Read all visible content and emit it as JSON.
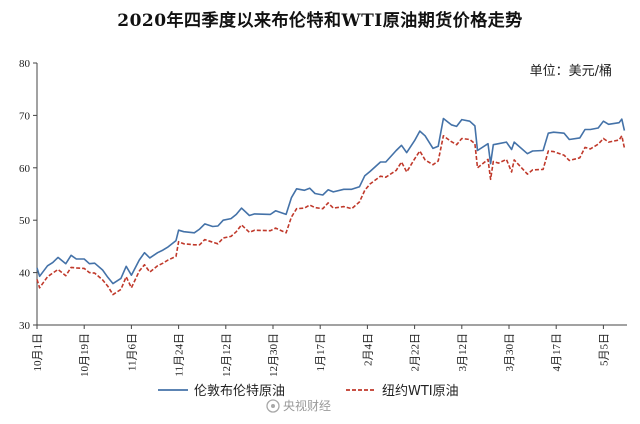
{
  "chart_data": {
    "type": "line",
    "title": "2020年四季度以来布伦特和WTI原油期货价格走势",
    "unit_label": "单位：美元/桶",
    "ylim": [
      30,
      80
    ],
    "yticks": [
      30,
      40,
      50,
      60,
      70,
      80
    ],
    "xlim": [
      "2020-10-01",
      "2021-05-14"
    ],
    "xticks": [
      {
        "label": "10月1日",
        "date": "2020-10-01"
      },
      {
        "label": "10月19日",
        "date": "2020-10-19"
      },
      {
        "label": "11月6日",
        "date": "2020-11-06"
      },
      {
        "label": "11月24日",
        "date": "2020-11-24"
      },
      {
        "label": "12月12日",
        "date": "2020-12-12"
      },
      {
        "label": "12月30日",
        "date": "2020-12-30"
      },
      {
        "label": "1月17日",
        "date": "2021-01-17"
      },
      {
        "label": "2月4日",
        "date": "2021-02-04"
      },
      {
        "label": "2月22日",
        "date": "2021-02-22"
      },
      {
        "label": "3月12日",
        "date": "2021-03-12"
      },
      {
        "label": "3月30日",
        "date": "2021-03-30"
      },
      {
        "label": "4月17日",
        "date": "2021-04-17"
      },
      {
        "label": "5月5日",
        "date": "2021-05-05"
      }
    ],
    "legend_placement": "bottom",
    "grid": false,
    "series": [
      {
        "name": "伦敦布伦特原油",
        "color": "#4472a8",
        "style": "solid",
        "points": [
          [
            "2020-10-01",
            40.9
          ],
          [
            "2020-10-02",
            39.3
          ],
          [
            "2020-10-05",
            41.3
          ],
          [
            "2020-10-07",
            41.9
          ],
          [
            "2020-10-09",
            42.9
          ],
          [
            "2020-10-12",
            41.7
          ],
          [
            "2020-10-14",
            43.3
          ],
          [
            "2020-10-16",
            42.6
          ],
          [
            "2020-10-19",
            42.6
          ],
          [
            "2020-10-21",
            41.7
          ],
          [
            "2020-10-23",
            41.8
          ],
          [
            "2020-10-26",
            40.5
          ],
          [
            "2020-10-28",
            39.1
          ],
          [
            "2020-10-30",
            37.9
          ],
          [
            "2020-11-02",
            38.9
          ],
          [
            "2020-11-04",
            41.2
          ],
          [
            "2020-11-06",
            39.5
          ],
          [
            "2020-11-09",
            42.4
          ],
          [
            "2020-11-11",
            43.8
          ],
          [
            "2020-11-13",
            42.8
          ],
          [
            "2020-11-16",
            43.8
          ],
          [
            "2020-11-18",
            44.3
          ],
          [
            "2020-11-20",
            44.9
          ],
          [
            "2020-11-23",
            46.1
          ],
          [
            "2020-11-24",
            48.1
          ],
          [
            "2020-11-26",
            47.8
          ],
          [
            "2020-11-30",
            47.6
          ],
          [
            "2020-12-02",
            48.3
          ],
          [
            "2020-12-04",
            49.3
          ],
          [
            "2020-12-07",
            48.8
          ],
          [
            "2020-12-09",
            48.9
          ],
          [
            "2020-12-11",
            50.0
          ],
          [
            "2020-12-14",
            50.3
          ],
          [
            "2020-12-16",
            51.1
          ],
          [
            "2020-12-18",
            52.3
          ],
          [
            "2020-12-21",
            50.9
          ],
          [
            "2020-12-23",
            51.2
          ],
          [
            "2020-12-29",
            51.1
          ],
          [
            "2020-12-31",
            51.8
          ],
          [
            "2021-01-04",
            51.1
          ],
          [
            "2021-01-06",
            54.3
          ],
          [
            "2021-01-08",
            55.99
          ],
          [
            "2021-01-11",
            55.7
          ],
          [
            "2021-01-13",
            56.1
          ],
          [
            "2021-01-15",
            55.1
          ],
          [
            "2021-01-18",
            54.8
          ],
          [
            "2021-01-20",
            55.8
          ],
          [
            "2021-01-22",
            55.4
          ],
          [
            "2021-01-26",
            55.9
          ],
          [
            "2021-01-29",
            55.9
          ],
          [
            "2021-02-01",
            56.4
          ],
          [
            "2021-02-03",
            58.5
          ],
          [
            "2021-02-05",
            59.3
          ],
          [
            "2021-02-09",
            61.1
          ],
          [
            "2021-02-11",
            61.1
          ],
          [
            "2021-02-15",
            63.3
          ],
          [
            "2021-02-17",
            64.3
          ],
          [
            "2021-02-19",
            62.9
          ],
          [
            "2021-02-22",
            65.2
          ],
          [
            "2021-02-24",
            67.0
          ],
          [
            "2021-02-26",
            66.1
          ],
          [
            "2021-03-01",
            63.7
          ],
          [
            "2021-03-03",
            64.1
          ],
          [
            "2021-03-05",
            69.4
          ],
          [
            "2021-03-08",
            68.2
          ],
          [
            "2021-03-10",
            67.9
          ],
          [
            "2021-03-12",
            69.2
          ],
          [
            "2021-03-15",
            68.9
          ],
          [
            "2021-03-17",
            68.0
          ],
          [
            "2021-03-18",
            63.3
          ],
          [
            "2021-03-22",
            64.6
          ],
          [
            "2021-03-23",
            60.8
          ],
          [
            "2021-03-24",
            64.4
          ],
          [
            "2021-03-26",
            64.6
          ],
          [
            "2021-03-29",
            64.9
          ],
          [
            "2021-03-31",
            63.5
          ],
          [
            "2021-04-01",
            64.9
          ],
          [
            "2021-04-06",
            62.7
          ],
          [
            "2021-04-08",
            63.2
          ],
          [
            "2021-04-12",
            63.3
          ],
          [
            "2021-04-14",
            66.6
          ],
          [
            "2021-04-16",
            66.8
          ],
          [
            "2021-04-20",
            66.6
          ],
          [
            "2021-04-22",
            65.4
          ],
          [
            "2021-04-26",
            65.7
          ],
          [
            "2021-04-28",
            67.3
          ],
          [
            "2021-04-30",
            67.3
          ],
          [
            "2021-05-03",
            67.6
          ],
          [
            "2021-05-05",
            68.9
          ],
          [
            "2021-05-07",
            68.3
          ],
          [
            "2021-05-11",
            68.6
          ],
          [
            "2021-05-12",
            69.3
          ],
          [
            "2021-05-13",
            67.1
          ]
        ]
      },
      {
        "name": "纽约WTI原油",
        "color": "#c0392b",
        "style": "dashed",
        "points": [
          [
            "2020-10-01",
            38.7
          ],
          [
            "2020-10-02",
            37.1
          ],
          [
            "2020-10-05",
            39.2
          ],
          [
            "2020-10-07",
            39.9
          ],
          [
            "2020-10-09",
            40.6
          ],
          [
            "2020-10-12",
            39.4
          ],
          [
            "2020-10-14",
            41.0
          ],
          [
            "2020-10-16",
            40.9
          ],
          [
            "2020-10-19",
            40.8
          ],
          [
            "2020-10-21",
            40.0
          ],
          [
            "2020-10-23",
            39.9
          ],
          [
            "2020-10-26",
            38.6
          ],
          [
            "2020-10-28",
            37.4
          ],
          [
            "2020-10-30",
            35.8
          ],
          [
            "2020-11-02",
            36.8
          ],
          [
            "2020-11-04",
            39.2
          ],
          [
            "2020-11-06",
            37.1
          ],
          [
            "2020-11-09",
            40.3
          ],
          [
            "2020-11-11",
            41.5
          ],
          [
            "2020-11-13",
            40.1
          ],
          [
            "2020-11-16",
            41.3
          ],
          [
            "2020-11-18",
            41.8
          ],
          [
            "2020-11-20",
            42.4
          ],
          [
            "2020-11-23",
            43.1
          ],
          [
            "2020-11-24",
            45.9
          ],
          [
            "2020-11-26",
            45.5
          ],
          [
            "2020-11-30",
            45.3
          ],
          [
            "2020-12-02",
            45.3
          ],
          [
            "2020-12-04",
            46.3
          ],
          [
            "2020-12-07",
            45.8
          ],
          [
            "2020-12-09",
            45.5
          ],
          [
            "2020-12-11",
            46.6
          ],
          [
            "2020-12-14",
            46.9
          ],
          [
            "2020-12-16",
            47.8
          ],
          [
            "2020-12-18",
            49.1
          ],
          [
            "2020-12-21",
            47.7
          ],
          [
            "2020-12-23",
            48.1
          ],
          [
            "2020-12-29",
            48.0
          ],
          [
            "2020-12-31",
            48.5
          ],
          [
            "2021-01-04",
            47.6
          ],
          [
            "2021-01-06",
            50.6
          ],
          [
            "2021-01-08",
            52.2
          ],
          [
            "2021-01-11",
            52.3
          ],
          [
            "2021-01-13",
            52.9
          ],
          [
            "2021-01-15",
            52.4
          ],
          [
            "2021-01-18",
            52.2
          ],
          [
            "2021-01-20",
            53.3
          ],
          [
            "2021-01-22",
            52.3
          ],
          [
            "2021-01-26",
            52.6
          ],
          [
            "2021-01-29",
            52.2
          ],
          [
            "2021-02-01",
            53.5
          ],
          [
            "2021-02-03",
            55.7
          ],
          [
            "2021-02-05",
            56.9
          ],
          [
            "2021-02-09",
            58.4
          ],
          [
            "2021-02-11",
            58.2
          ],
          [
            "2021-02-15",
            59.5
          ],
          [
            "2021-02-17",
            61.1
          ],
          [
            "2021-02-19",
            59.2
          ],
          [
            "2021-02-22",
            61.7
          ],
          [
            "2021-02-24",
            63.2
          ],
          [
            "2021-02-26",
            61.5
          ],
          [
            "2021-03-01",
            60.6
          ],
          [
            "2021-03-03",
            61.3
          ],
          [
            "2021-03-05",
            66.1
          ],
          [
            "2021-03-08",
            65.0
          ],
          [
            "2021-03-10",
            64.4
          ],
          [
            "2021-03-12",
            65.6
          ],
          [
            "2021-03-15",
            65.4
          ],
          [
            "2021-03-17",
            64.6
          ],
          [
            "2021-03-18",
            60.0
          ],
          [
            "2021-03-22",
            61.6
          ],
          [
            "2021-03-23",
            57.8
          ],
          [
            "2021-03-24",
            61.2
          ],
          [
            "2021-03-26",
            60.9
          ],
          [
            "2021-03-29",
            61.6
          ],
          [
            "2021-03-31",
            59.2
          ],
          [
            "2021-04-01",
            61.5
          ],
          [
            "2021-04-06",
            58.8
          ],
          [
            "2021-04-08",
            59.6
          ],
          [
            "2021-04-12",
            59.7
          ],
          [
            "2021-04-14",
            63.2
          ],
          [
            "2021-04-16",
            63.1
          ],
          [
            "2021-04-20",
            62.4
          ],
          [
            "2021-04-22",
            61.4
          ],
          [
            "2021-04-26",
            61.9
          ],
          [
            "2021-04-28",
            63.9
          ],
          [
            "2021-04-30",
            63.6
          ],
          [
            "2021-05-03",
            64.5
          ],
          [
            "2021-05-05",
            65.6
          ],
          [
            "2021-05-07",
            64.9
          ],
          [
            "2021-05-11",
            65.3
          ],
          [
            "2021-05-12",
            66.1
          ],
          [
            "2021-05-13",
            63.8
          ]
        ]
      }
    ]
  },
  "watermark": "央视财经"
}
